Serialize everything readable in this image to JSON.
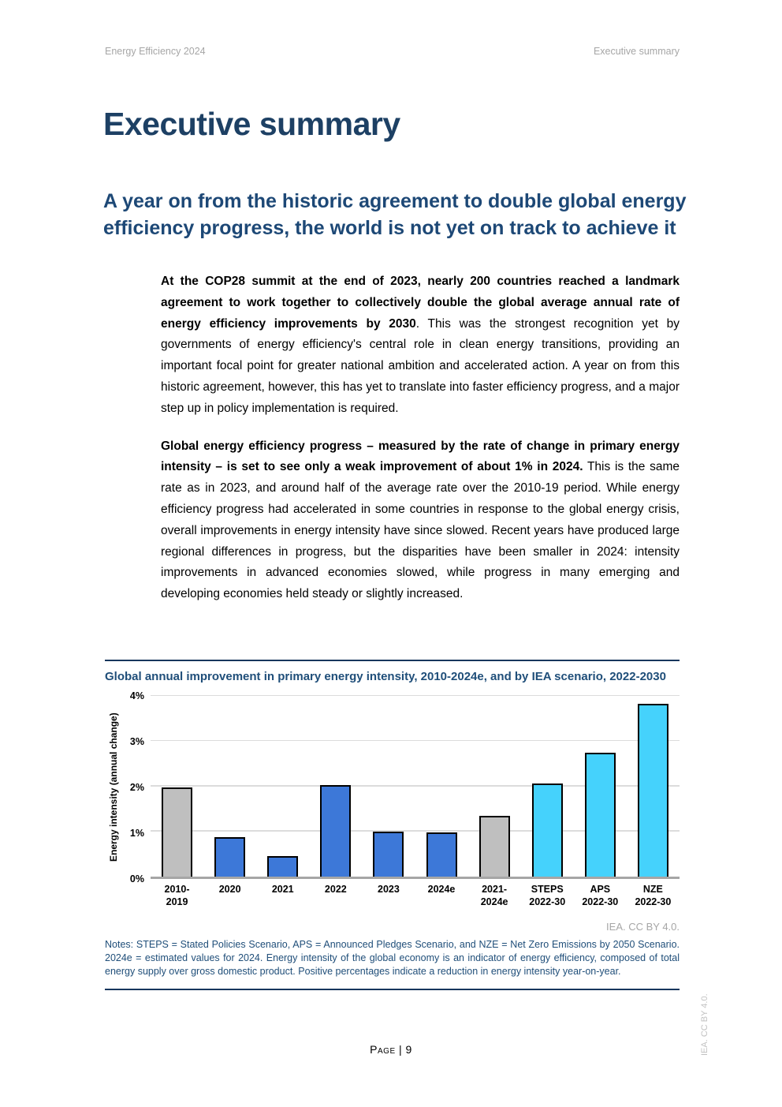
{
  "header": {
    "left": "Energy Efficiency 2024",
    "right": "Executive summary"
  },
  "title": "Executive summary",
  "section_heading": "A year on from the historic agreement to double global energy efficiency progress, the world is not yet on track to achieve it",
  "paragraphs": [
    {
      "bold": "At the COP28 summit at the end of 2023, nearly 200 countries reached a landmark agreement to work together to collectively double the global average annual rate of energy efficiency improvements by 2030",
      "rest": ". This was the strongest recognition yet by governments of energy efficiency's central role in clean energy transitions, providing an important focal point for greater national ambition and accelerated action. A year on from this historic agreement, however, this has yet to translate into faster efficiency progress, and a major step up in policy implementation is required."
    },
    {
      "bold": "Global energy efficiency progress – measured by the rate of change in primary energy intensity – is set to see only a weak improvement of about 1% in 2024.",
      "rest": " This is the same rate as in 2023, and around half of the average rate over the 2010-19 period. While energy efficiency progress had accelerated in some countries in response to the global energy crisis, overall improvements in energy intensity have since slowed. Recent years have produced large regional differences in progress, but the disparities have been smaller in 2024: intensity improvements in advanced economies slowed, while progress in many emerging and developing economies held steady or slightly increased."
    }
  ],
  "figure": {
    "title": "Global annual improvement in primary energy intensity, 2010-2024e, and by IEA scenario, 2022-2030",
    "credit": "IEA. CC BY 4.0.",
    "notes": "Notes: STEPS = Stated Policies Scenario, APS = Announced Pledges Scenario, and NZE = Net Zero Emissions by 2050 Scenario. 2024e = estimated values for 2024. Energy intensity of the global economy is an indicator of energy efficiency, composed of total energy supply over gross domestic product. Positive percentages indicate a reduction in energy intensity year-on-year."
  },
  "chart_data": {
    "type": "bar",
    "title": "Global annual improvement in primary energy intensity, 2010-2024e, and by IEA scenario, 2022-2030",
    "xlabel": "",
    "ylabel": "Energy intensity (annual change)",
    "ylim": [
      0,
      4
    ],
    "yticks": [
      "0%",
      "1%",
      "2%",
      "3%",
      "4%"
    ],
    "grid": true,
    "legend": "none",
    "categories": [
      "2010-\n2019",
      "2020",
      "2021",
      "2022",
      "2023",
      "2024e",
      "2021-\n2024e",
      "STEPS\n2022-30",
      "APS\n2022-30",
      "NZE\n2022-30"
    ],
    "values": [
      1.97,
      0.88,
      0.46,
      2.03,
      0.99,
      0.97,
      1.34,
      2.07,
      2.75,
      3.82
    ],
    "bar_roles": [
      "gray",
      "blue",
      "blue",
      "blue",
      "blue",
      "blue",
      "gray",
      "cyan",
      "cyan",
      "cyan"
    ],
    "palette": {
      "gray": "#bfbfbf",
      "blue": "#3d78d8",
      "cyan": "#45d2fc"
    },
    "colors": {
      "heading": "#1d4876",
      "rule": "#17365d",
      "gridline": "#dcdcdc",
      "axis": "#a6a6a6",
      "bar_border": "#000000"
    }
  },
  "footer": {
    "page_label": "Page | 9"
  },
  "side_credit": "IEA. CC BY 4.0."
}
